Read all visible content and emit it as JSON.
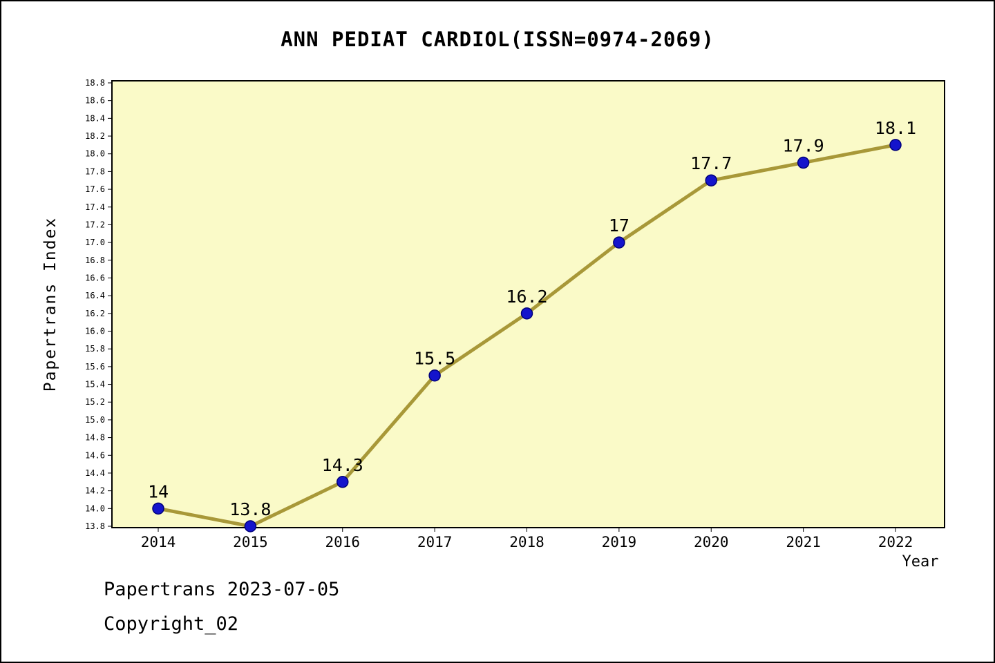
{
  "title": "ANN PEDIAT CARDIOL(ISSN=0974-2069)",
  "footer": {
    "line1": "Papertrans 2023-07-05",
    "line2": "Copyright_02"
  },
  "chart_data": {
    "type": "line",
    "title": "ANN PEDIAT CARDIOL(ISSN=0974-2069)",
    "xlabel": "Year",
    "ylabel": "Papertrans Index",
    "x": [
      2014,
      2015,
      2016,
      2017,
      2018,
      2019,
      2020,
      2021,
      2022
    ],
    "values": [
      14,
      13.8,
      14.3,
      15.5,
      16.2,
      17,
      17.7,
      17.9,
      18.1
    ],
    "point_labels": [
      "14",
      "13.8",
      "14.3",
      "15.5",
      "16.2",
      "17",
      "17.7",
      "17.9",
      "18.1"
    ],
    "ylim": [
      13.8,
      18.8
    ],
    "ytick_step": 0.2,
    "grid": false,
    "legend": "none",
    "colors": {
      "line": "#A89838",
      "marker_fill": "#1414CC",
      "marker_edge": "#00007A",
      "plot_bg": "#FAFAC8",
      "axis": "#000000"
    }
  }
}
